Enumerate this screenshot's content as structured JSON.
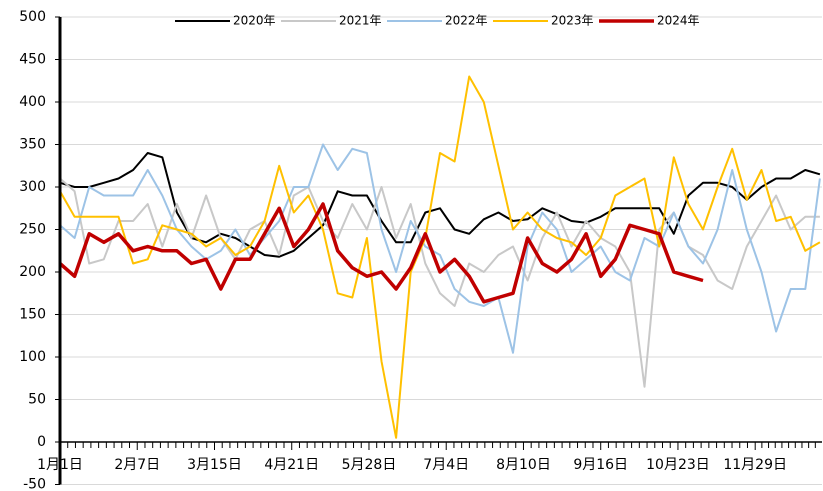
{
  "chart_data": {
    "type": "line",
    "x": [
      0,
      7,
      14,
      21,
      28,
      35,
      42,
      49,
      56,
      63,
      70,
      77,
      84,
      91,
      98,
      105,
      112,
      119,
      126,
      133,
      140,
      147,
      154,
      161,
      168,
      175,
      182,
      189,
      196,
      203,
      210,
      217,
      224,
      231,
      238,
      245,
      252,
      259,
      266,
      273,
      280,
      287,
      294,
      301,
      308,
      315,
      322,
      329,
      336,
      343,
      350,
      357,
      364
    ],
    "xlim": [
      0,
      365
    ],
    "xticks": [
      {
        "value": 0,
        "label": "1月1日"
      },
      {
        "value": 37,
        "label": "2月7日"
      },
      {
        "value": 74,
        "label": "3月15日"
      },
      {
        "value": 111,
        "label": "4月21日"
      },
      {
        "value": 148,
        "label": "5月28日"
      },
      {
        "value": 185,
        "label": "7月4日"
      },
      {
        "value": 222,
        "label": "8月10日"
      },
      {
        "value": 259,
        "label": "9月16日"
      },
      {
        "value": 296,
        "label": "10月23日"
      },
      {
        "value": 333,
        "label": "11月29日"
      }
    ],
    "ylim": [
      -50,
      500
    ],
    "yticks": [
      -50,
      0,
      50,
      100,
      150,
      200,
      250,
      300,
      350,
      400,
      450,
      500
    ],
    "grid": true,
    "legend": "top",
    "series": [
      {
        "name": "2020年",
        "color": "#000000",
        "values": [
          305,
          300,
          300,
          305,
          310,
          320,
          340,
          335,
          270,
          240,
          235,
          245,
          240,
          230,
          220,
          218,
          225,
          240,
          255,
          295,
          290,
          290,
          260,
          235,
          235,
          270,
          275,
          250,
          245,
          262,
          270,
          260,
          262,
          275,
          268,
          260,
          258,
          265,
          275,
          275,
          275,
          275,
          245,
          290,
          305,
          305,
          300,
          285,
          300,
          310,
          310,
          320,
          315
        ]
      },
      {
        "name": "2021年",
        "color": "#c8c8c8",
        "values": [
          310,
          295,
          210,
          215,
          260,
          260,
          280,
          230,
          280,
          240,
          290,
          240,
          215,
          250,
          260,
          220,
          290,
          300,
          260,
          240,
          280,
          250,
          300,
          240,
          280,
          210,
          175,
          160,
          210,
          200,
          220,
          230,
          190,
          240,
          270,
          230,
          260,
          240,
          230,
          200,
          65,
          250,
          270,
          230,
          220,
          190,
          180,
          230,
          260,
          290,
          250,
          265,
          265
        ]
      },
      {
        "name": "2022年",
        "color": "#9dc3e6",
        "values": [
          255,
          240,
          300,
          290,
          290,
          290,
          320,
          290,
          250,
          230,
          215,
          225,
          250,
          220,
          240,
          260,
          300,
          300,
          350,
          320,
          345,
          340,
          250,
          200,
          260,
          230,
          220,
          180,
          165,
          160,
          170,
          105,
          230,
          270,
          250,
          200,
          215,
          230,
          200,
          190,
          240,
          230,
          270,
          230,
          210,
          250,
          320,
          250,
          200,
          130,
          180,
          180,
          310
        ]
      },
      {
        "name": "2023年",
        "color": "#ffc000",
        "values": [
          295,
          265,
          265,
          265,
          265,
          210,
          215,
          255,
          250,
          245,
          230,
          240,
          220,
          230,
          260,
          325,
          270,
          290,
          250,
          175,
          170,
          240,
          95,
          5,
          200,
          240,
          340,
          330,
          430,
          400,
          325,
          250,
          270,
          250,
          240,
          235,
          220,
          240,
          290,
          300,
          310,
          230,
          335,
          280,
          250,
          300,
          345,
          285,
          320,
          260,
          265,
          225,
          235
        ]
      },
      {
        "name": "2024年",
        "color": "#c00000",
        "values": [
          210,
          195,
          245,
          235,
          245,
          225,
          230,
          225,
          225,
          210,
          215,
          180,
          215,
          215,
          245,
          275,
          230,
          250,
          280,
          225,
          205,
          195,
          200,
          180,
          205,
          245,
          200,
          215,
          195,
          165,
          170,
          175,
          240,
          210,
          200,
          215,
          245,
          195,
          215,
          255,
          250,
          245,
          200,
          195,
          190,
          null,
          null,
          null,
          null,
          null,
          null,
          null,
          null
        ]
      }
    ]
  }
}
